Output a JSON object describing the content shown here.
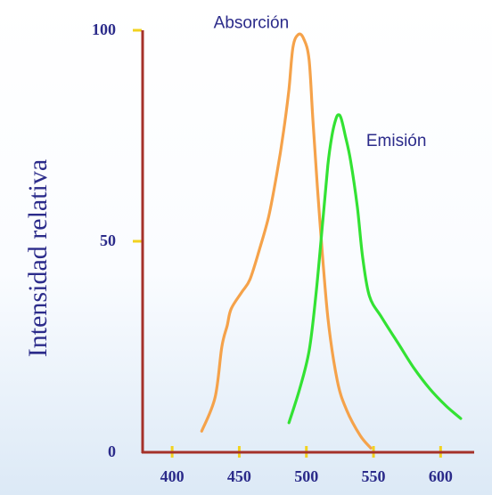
{
  "chart_data": {
    "type": "line",
    "title": "",
    "xlabel": "",
    "ylabel": "Intensidad relativa",
    "xlim": [
      378,
      625
    ],
    "ylim": [
      0,
      100
    ],
    "x_ticks": [
      400,
      450,
      500,
      550,
      600
    ],
    "y_ticks": [
      0,
      50,
      100
    ],
    "grid": false,
    "legend": "none",
    "colors": {
      "axis": "#a5312a",
      "tick": "#f2d21f",
      "label": "#2b2b8a",
      "absorption": "#f5a24a",
      "emission": "#33e233",
      "background_top": "#ffffff",
      "background_bottom": "#dce9f6"
    },
    "series": [
      {
        "name": "Absorción",
        "color": "#f5a24a",
        "x": [
          422,
          432,
          437,
          441,
          444,
          452,
          458,
          465,
          472,
          478,
          483,
          487,
          490,
          494,
          498,
          502,
          505,
          510,
          516,
          523,
          530,
          540,
          548
        ],
        "y": [
          5,
          13,
          25,
          30,
          34,
          38,
          41,
          48,
          56,
          66,
          76,
          86,
          96,
          99,
          98,
          93,
          78,
          55,
          32,
          17,
          10,
          4,
          1
        ]
      },
      {
        "name": "Emisión",
        "color": "#33e233",
        "x": [
          487,
          495,
          502,
          507,
          512,
          516,
          519,
          522,
          524,
          526,
          529,
          533,
          538,
          542,
          547,
          556,
          568,
          580,
          592,
          604,
          615
        ],
        "y": [
          7,
          15,
          24,
          37,
          54,
          68,
          75,
          79,
          80,
          79,
          75,
          69,
          58,
          46,
          37,
          32,
          26,
          20,
          15,
          11,
          8
        ]
      }
    ],
    "annotations": [
      {
        "text": "Absorción",
        "x": 487,
        "y": 102
      },
      {
        "text": "Emisión",
        "x": 567,
        "y": 74
      }
    ]
  }
}
